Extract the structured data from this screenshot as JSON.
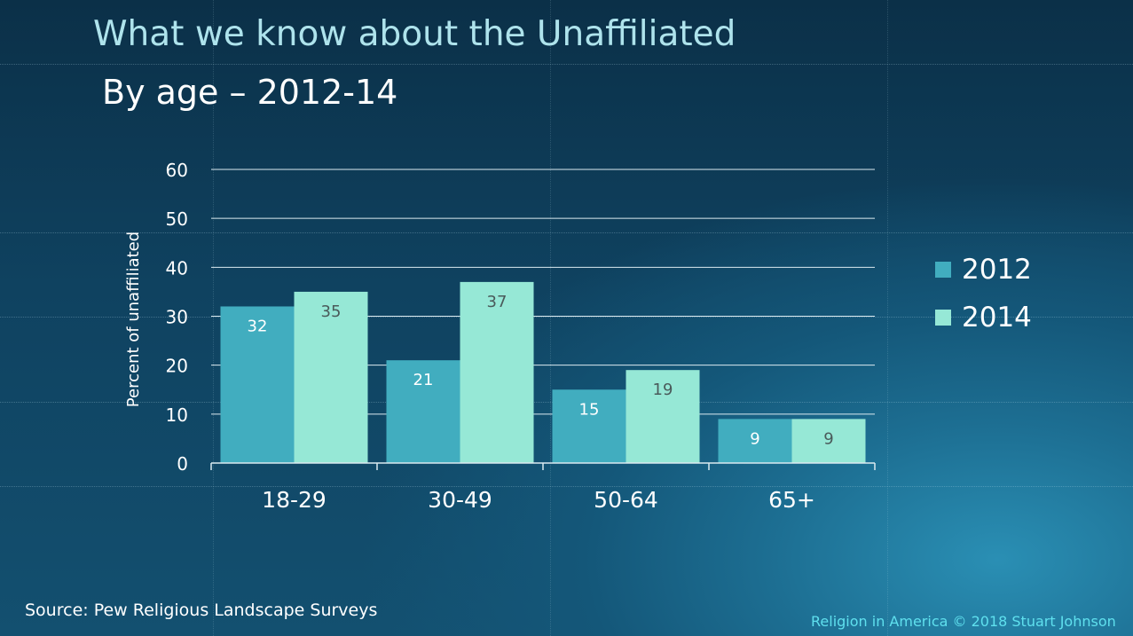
{
  "title": "What we know about the Unaffiliated",
  "subtitle": "By age – 2012-14",
  "source": "Source: Pew Religious Landscape Surveys",
  "credit": "Religion in America © 2018 Stuart Johnson",
  "colors": {
    "series_2012": "#41adbf",
    "series_2014": "#96e8d6",
    "label_on_2012": "#ffffff",
    "label_on_2014": "#4a5a5a",
    "axis_text": "#ffffff",
    "gridline": "#dbeaf0"
  },
  "chart_data": {
    "type": "bar",
    "categories": [
      "18-29",
      "30-49",
      "50-64",
      "65+"
    ],
    "series": [
      {
        "name": "2012",
        "values": [
          32,
          21,
          15,
          9
        ]
      },
      {
        "name": "2014",
        "values": [
          35,
          37,
          19,
          9
        ]
      }
    ],
    "ylabel": "Percent of unaffiliated",
    "xlabel": "",
    "ylim": [
      0,
      60
    ],
    "yticks": [
      0,
      10,
      20,
      30,
      40,
      50,
      60
    ],
    "grid": true,
    "legend": "right",
    "data_labels": true
  }
}
